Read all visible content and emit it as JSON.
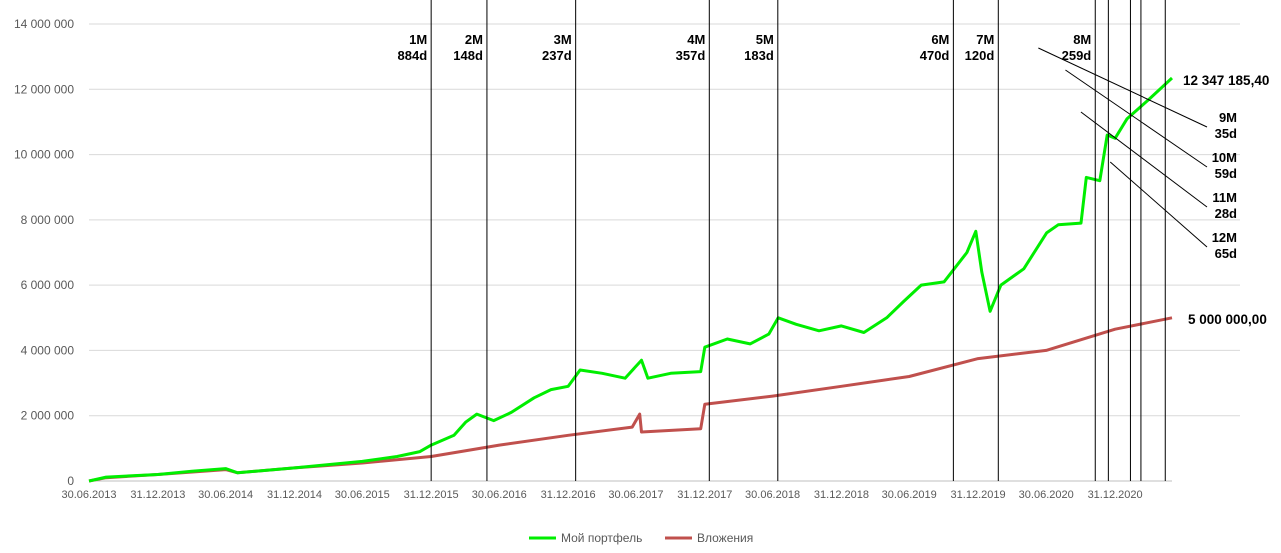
{
  "chart_data": {
    "type": "line",
    "ylim": [
      0,
      14000000
    ],
    "y_ticks": [
      "0",
      "2 000 000",
      "4 000 000",
      "6 000 000",
      "8 000 000",
      "10 000 000",
      "12 000 000",
      "14 000 000"
    ],
    "y_tick_values": [
      0,
      2000000,
      4000000,
      6000000,
      8000000,
      10000000,
      12000000,
      14000000
    ],
    "x_range": [
      "2013-06-30",
      "2021-06-01"
    ],
    "x_ticks": [
      "30.06.2013",
      "31.12.2013",
      "30.06.2014",
      "31.12.2014",
      "30.06.2015",
      "31.12.2015",
      "30.06.2016",
      "31.12.2016",
      "30.06.2017",
      "31.12.2017",
      "30.06.2018",
      "31.12.2018",
      "30.06.2019",
      "31.12.2019",
      "30.06.2020",
      "31.12.2020"
    ],
    "x_tick_dates": [
      "2013-06-30",
      "2013-12-31",
      "2014-06-30",
      "2014-12-31",
      "2015-06-30",
      "2015-12-31",
      "2016-06-30",
      "2016-12-31",
      "2017-06-30",
      "2017-12-31",
      "2018-06-30",
      "2018-12-31",
      "2019-06-30",
      "2019-12-31",
      "2020-06-30",
      "2020-12-31"
    ],
    "grid": true,
    "legend": "bottom",
    "series": [
      {
        "name": "Мой портфель",
        "color": "#00ee00",
        "points": [
          [
            "2013-06-30",
            0
          ],
          [
            "2013-08-15",
            120000
          ],
          [
            "2013-12-31",
            200000
          ],
          [
            "2014-04-01",
            300000
          ],
          [
            "2014-06-30",
            380000
          ],
          [
            "2014-08-01",
            250000
          ],
          [
            "2014-12-31",
            400000
          ],
          [
            "2015-06-30",
            600000
          ],
          [
            "2015-10-01",
            750000
          ],
          [
            "2015-12-01",
            900000
          ],
          [
            "2015-12-31",
            1100000
          ],
          [
            "2016-03-01",
            1400000
          ],
          [
            "2016-04-01",
            1800000
          ],
          [
            "2016-05-01",
            2050000
          ],
          [
            "2016-06-15",
            1850000
          ],
          [
            "2016-08-01",
            2100000
          ],
          [
            "2016-10-01",
            2550000
          ],
          [
            "2016-11-15",
            2800000
          ],
          [
            "2016-12-31",
            2900000
          ],
          [
            "2017-02-01",
            3400000
          ],
          [
            "2017-04-01",
            3300000
          ],
          [
            "2017-06-01",
            3150000
          ],
          [
            "2017-07-15",
            3700000
          ],
          [
            "2017-08-01",
            3150000
          ],
          [
            "2017-10-01",
            3300000
          ],
          [
            "2017-12-20",
            3350000
          ],
          [
            "2017-12-31",
            4100000
          ],
          [
            "2018-03-01",
            4350000
          ],
          [
            "2018-05-01",
            4200000
          ],
          [
            "2018-06-20",
            4500000
          ],
          [
            "2018-07-15",
            5000000
          ],
          [
            "2018-09-01",
            4800000
          ],
          [
            "2018-11-01",
            4600000
          ],
          [
            "2018-12-31",
            4750000
          ],
          [
            "2019-03-01",
            4550000
          ],
          [
            "2019-05-01",
            5000000
          ],
          [
            "2019-06-15",
            5500000
          ],
          [
            "2019-08-01",
            6000000
          ],
          [
            "2019-10-01",
            6100000
          ],
          [
            "2019-12-01",
            7000000
          ],
          [
            "2019-12-25",
            7650000
          ],
          [
            "2020-01-10",
            6400000
          ],
          [
            "2020-02-01",
            5200000
          ],
          [
            "2020-03-01",
            6000000
          ],
          [
            "2020-05-01",
            6500000
          ],
          [
            "2020-07-01",
            7600000
          ],
          [
            "2020-08-01",
            7850000
          ],
          [
            "2020-10-01",
            7900000
          ],
          [
            "2020-10-15",
            9300000
          ],
          [
            "2020-11-20",
            9200000
          ],
          [
            "2020-12-10",
            10600000
          ],
          [
            "2020-12-31",
            10500000
          ],
          [
            "2021-02-01",
            11100000
          ],
          [
            "2021-04-01",
            11700000
          ],
          [
            "2021-06-01",
            12347185.4
          ]
        ]
      },
      {
        "name": "Вложения",
        "color": "#c0504d",
        "points": [
          [
            "2013-06-30",
            0
          ],
          [
            "2013-08-15",
            100000
          ],
          [
            "2013-12-31",
            200000
          ],
          [
            "2014-06-30",
            350000
          ],
          [
            "2014-08-01",
            250000
          ],
          [
            "2014-12-31",
            400000
          ],
          [
            "2015-06-30",
            550000
          ],
          [
            "2015-12-31",
            750000
          ],
          [
            "2016-06-30",
            1100000
          ],
          [
            "2016-12-31",
            1400000
          ],
          [
            "2017-06-20",
            1650000
          ],
          [
            "2017-07-10",
            2050000
          ],
          [
            "2017-07-15",
            1500000
          ],
          [
            "2017-12-20",
            1600000
          ],
          [
            "2017-12-31",
            2350000
          ],
          [
            "2018-06-30",
            2600000
          ],
          [
            "2018-12-31",
            2900000
          ],
          [
            "2019-06-30",
            3200000
          ],
          [
            "2019-12-31",
            3750000
          ],
          [
            "2020-06-30",
            4000000
          ],
          [
            "2020-12-31",
            4650000
          ],
          [
            "2021-06-01",
            5000000
          ]
        ]
      }
    ],
    "milestones": [
      {
        "date": "2015-12-31",
        "label": "1M",
        "days": "884d",
        "side": "top"
      },
      {
        "date": "2016-05-28",
        "label": "2M",
        "days": "148d",
        "side": "top"
      },
      {
        "date": "2017-01-20",
        "label": "3M",
        "days": "237d",
        "side": "top"
      },
      {
        "date": "2018-01-12",
        "label": "4M",
        "days": "357d",
        "side": "top"
      },
      {
        "date": "2018-07-14",
        "label": "5M",
        "days": "183d",
        "side": "top"
      },
      {
        "date": "2019-10-26",
        "label": "6M",
        "days": "470d",
        "side": "top"
      },
      {
        "date": "2020-02-23",
        "label": "7M",
        "days": "120d",
        "side": "top"
      },
      {
        "date": "2020-11-08",
        "label": "8M",
        "days": "259d",
        "side": "top"
      },
      {
        "date": "2020-12-13",
        "label": "9M",
        "days": "35d",
        "side": "right"
      },
      {
        "date": "2021-02-10",
        "label": "10M",
        "days": "59d",
        "side": "right"
      },
      {
        "date": "2021-03-10",
        "label": "11M",
        "days": "28d",
        "side": "right"
      },
      {
        "date": "2021-05-14",
        "label": "12M",
        "days": "65d",
        "side": "right"
      }
    ],
    "end_labels": {
      "portfolio": "12 347 185,40",
      "investments": "5 000 000,00"
    }
  }
}
